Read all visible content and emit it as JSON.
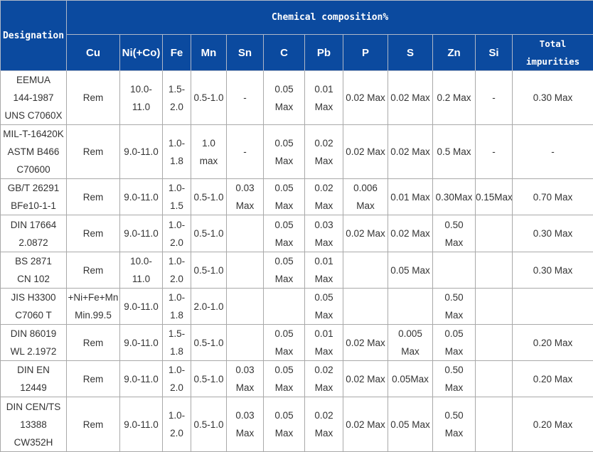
{
  "header": {
    "designation": "Designation",
    "group": "Chemical composition%",
    "columns": [
      "Cu",
      "Ni(+Co)",
      "Fe",
      "Mn",
      "Sn",
      "C",
      "Pb",
      "P",
      "S",
      "Zn",
      "Si",
      "Total\nimpurities"
    ]
  },
  "colors": {
    "header_bg": "#0b4a9f",
    "header_text": "#ffffff",
    "border": "#a9a9a9"
  },
  "rows": [
    [
      "EEMUA\n144-1987\nUNS C7060X",
      "Rem",
      "10.0-\n11.0",
      "1.5-\n2.0",
      "0.5-1.0",
      "-",
      "0.05\nMax",
      "0.01\nMax",
      "0.02 Max",
      "0.02 Max",
      "0.2 Max",
      "-",
      "0.30 Max"
    ],
    [
      "MIL-T-16420K\nASTM B466\nC70600",
      "Rem",
      "9.0-11.0",
      "1.0-\n1.8",
      "1.0\nmax",
      "-",
      "0.05\nMax",
      "0.02\nMax",
      "0.02 Max",
      "0.02 Max",
      "0.5 Max",
      "-",
      "-"
    ],
    [
      "GB/T 26291\nBFe10-1-1",
      "Rem",
      "9.0-11.0",
      "1.0-\n1.5",
      "0.5-1.0",
      "0.03\nMax",
      "0.05\nMax",
      "0.02\nMax",
      "0.006\nMax",
      "0.01 Max",
      "0.30Max",
      "0.15Max",
      "0.70 Max"
    ],
    [
      "DIN 17664\n2.0872",
      "Rem",
      "9.0-11.0",
      "1.0-\n2.0",
      "0.5-1.0",
      "",
      "0.05\nMax",
      "0.03\nMax",
      "0.02 Max",
      "0.02 Max",
      "0.50\nMax",
      "",
      "0.30 Max"
    ],
    [
      "BS 2871\nCN 102",
      "Rem",
      "10.0-\n11.0",
      "1.0-\n2.0",
      "0.5-1.0",
      "",
      "0.05\nMax",
      "0.01\nMax",
      "",
      "0.05 Max",
      "",
      "",
      "0.30 Max"
    ],
    [
      "JIS H3300\nC7060 T",
      "+Ni+Fe+Mn\nMin.99.5",
      "9.0-11.0",
      "1.0-\n1.8",
      "2.0-1.0",
      "",
      "",
      "0.05\nMax",
      "",
      "",
      "0.50\nMax",
      "",
      ""
    ],
    [
      "DIN 86019\nWL 2.1972",
      "Rem",
      "9.0-11.0",
      "1.5-\n1.8",
      "0.5-1.0",
      "",
      "0.05\nMax",
      "0.01\nMax",
      "0.02 Max",
      "0.005\nMax",
      "0.05\nMax",
      "",
      "0.20 Max"
    ],
    [
      "DIN EN\n12449",
      "Rem",
      "9.0-11.0",
      "1.0-\n2.0",
      "0.5-1.0",
      "0.03\nMax",
      "0.05\nMax",
      "0.02\nMax",
      "0.02 Max",
      "0.05Max",
      "0.50\nMax",
      "",
      "0.20 Max"
    ],
    [
      "DIN CEN/TS\n13388\nCW352H",
      "Rem",
      "9.0-11.0",
      "1.0-\n2.0",
      "0.5-1.0",
      "0.03\nMax",
      "0.05\nMax",
      "0.02\nMax",
      "0.02 Max",
      "0.05 Max",
      "0.50\nMax",
      "",
      "0.20 Max"
    ]
  ]
}
